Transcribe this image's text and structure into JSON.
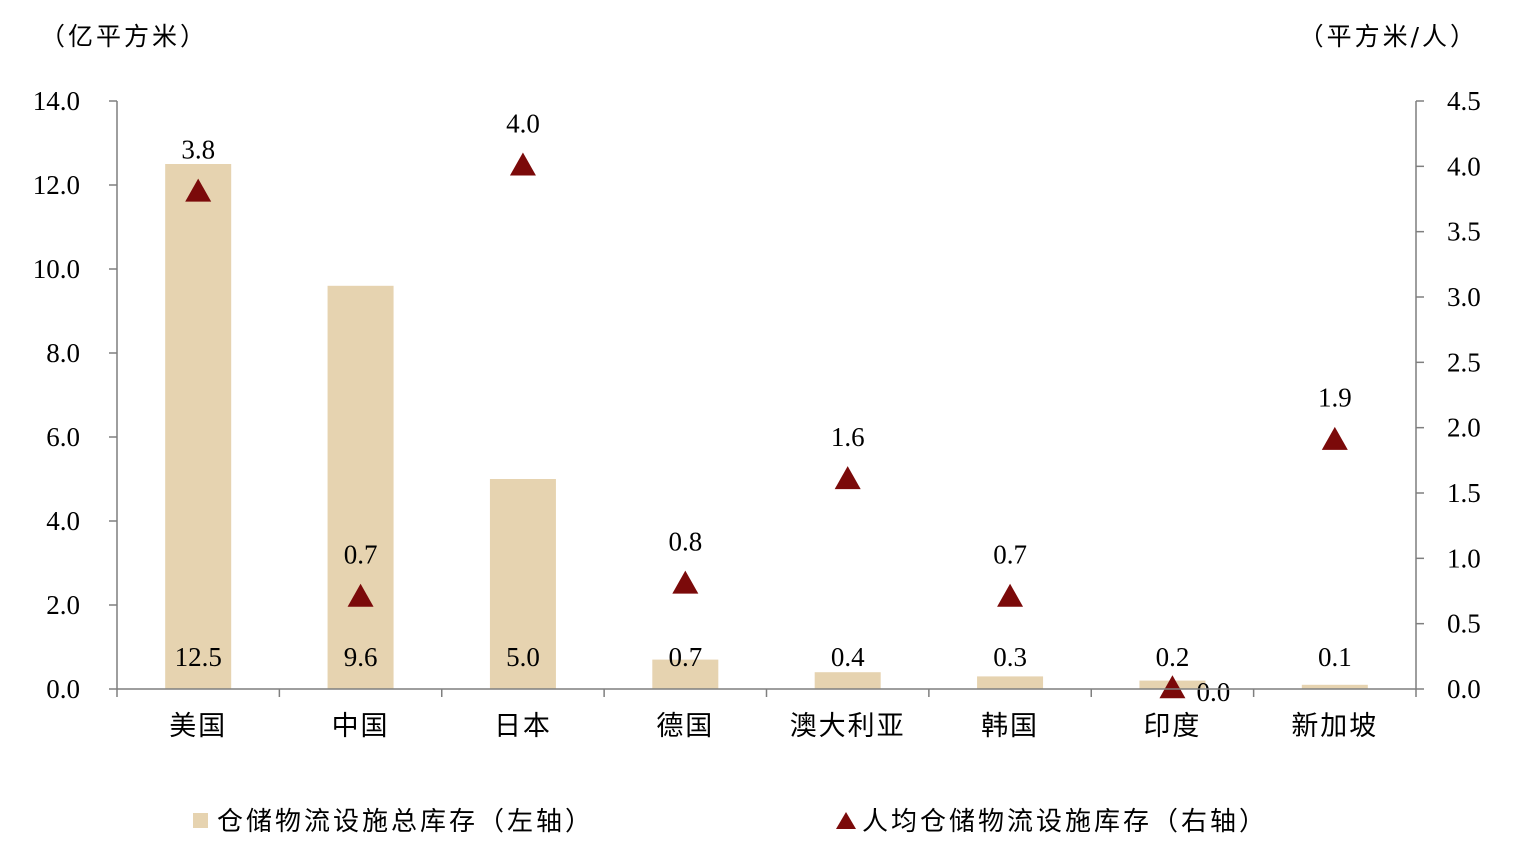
{
  "chart_data": {
    "type": "bar",
    "categories": [
      "美国",
      "中国",
      "日本",
      "德国",
      "澳大利亚",
      "韩国",
      "印度",
      "新加坡"
    ],
    "series": [
      {
        "name": "仓储物流设施总库存（左轴）",
        "type": "bar",
        "axis": "left",
        "values": [
          12.5,
          9.6,
          5.0,
          0.7,
          0.4,
          0.3,
          0.2,
          0.1
        ],
        "labels": [
          "12.5",
          "9.6",
          "5.0",
          "0.7",
          "0.4",
          "0.3",
          "0.2",
          "0.1"
        ],
        "color": "#e6d3b0"
      },
      {
        "name": "人均仓储物流设施库存（右轴）",
        "type": "scatter",
        "marker": "triangle",
        "axis": "right",
        "values": [
          3.8,
          0.7,
          4.0,
          0.8,
          1.6,
          0.7,
          0.0,
          1.9
        ],
        "labels": [
          "3.8",
          "0.7",
          "4.0",
          "0.8",
          "1.6",
          "0.7",
          "0.0",
          "1.9"
        ],
        "color": "#7b0a0a"
      }
    ],
    "y_left": {
      "label": "（亿平方米）",
      "ylim": [
        0,
        14
      ],
      "ticks": [
        "0.0",
        "2.0",
        "4.0",
        "6.0",
        "8.0",
        "10.0",
        "12.0",
        "14.0"
      ]
    },
    "y_right": {
      "label": "（平方米/人）",
      "ylim": [
        0,
        4.5
      ],
      "ticks": [
        "0.0",
        "0.5",
        "1.0",
        "1.5",
        "2.0",
        "2.5",
        "3.0",
        "3.5",
        "4.0",
        "4.5"
      ]
    },
    "grid": false,
    "legend_position": "bottom"
  }
}
